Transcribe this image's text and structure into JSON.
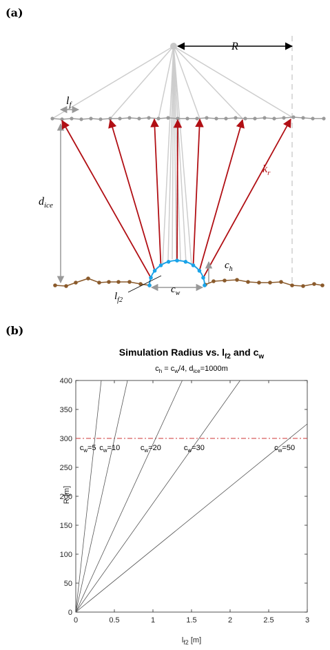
{
  "panel_a": {
    "label": "(a)",
    "labels": {
      "R": "R",
      "lf_base": "l",
      "lf_sub": "f",
      "d_base": "d",
      "d_sub": "ice",
      "kr_base": "k",
      "kr_sub": "r",
      "ch_base": "c",
      "ch_sub": "h",
      "cw_base": "c",
      "cw_sub": "w",
      "lf2_base": "l",
      "lf2_sub": "f2"
    },
    "colors": {
      "gray": "#c8c8c8",
      "red": "#b10f14",
      "brown": "#8a5a2b",
      "blue": "#1aa3e8"
    }
  },
  "panel_b": {
    "label": "(b)",
    "title_main": "Simulation Radius vs. l",
    "title_sub": "f2",
    "title_tail": " and c",
    "title_sub2": "w",
    "subtitle": "c = c /4, d =1000m",
    "subtitle_parts": [
      "c",
      "h",
      " = c",
      "w",
      "/4, d",
      "ice",
      "=1000m"
    ],
    "xlabel_base": "l",
    "xlabel_sub": "f2",
    "xlabel_tail": " [m]",
    "ylabel": "R [m]",
    "colors": {
      "line": "#555555",
      "threshold": "#cc3333"
    }
  },
  "chart_data": {
    "type": "line",
    "title": "Simulation Radius vs. lf2 and cw",
    "subtitle": "ch = cw/4, dice=1000m",
    "xlabel": "lf2 [m]",
    "ylabel": "R [m]",
    "xlim": [
      0,
      3
    ],
    "ylim": [
      0,
      400
    ],
    "xticks": [
      0,
      0.5,
      1,
      1.5,
      2,
      2.5,
      3
    ],
    "yticks": [
      0,
      50,
      100,
      150,
      200,
      250,
      300,
      350,
      400
    ],
    "xtick_labels": [
      "0",
      "0.5",
      "1",
      "1.5",
      "2",
      "2.5",
      "3"
    ],
    "ytick_labels": [
      "0",
      "50",
      "100",
      "150",
      "200",
      "250",
      "300",
      "350",
      "400"
    ],
    "series": [
      {
        "name": "cw=5",
        "label_prefix": "c",
        "label_sub": "w",
        "label_value": "=5",
        "x": [
          0,
          0.33
        ],
        "y": [
          0,
          400
        ]
      },
      {
        "name": "cw=10",
        "label_prefix": "c",
        "label_sub": "w",
        "label_value": "=10",
        "x": [
          0,
          0.67
        ],
        "y": [
          0,
          400
        ]
      },
      {
        "name": "cw=20",
        "label_prefix": "c",
        "label_sub": "w",
        "label_value": "=20",
        "x": [
          0,
          1.38
        ],
        "y": [
          0,
          400
        ]
      },
      {
        "name": "cw=30",
        "label_prefix": "c",
        "label_sub": "w",
        "label_value": "=30",
        "x": [
          0,
          2.13
        ],
        "y": [
          0,
          400
        ]
      },
      {
        "name": "cw=50",
        "label_prefix": "c",
        "label_sub": "w",
        "label_value": "=50",
        "x": [
          0,
          3.0
        ],
        "y": [
          0,
          325
        ]
      }
    ],
    "threshold": {
      "y": 300,
      "style": "dash-dot"
    },
    "grid": false
  }
}
